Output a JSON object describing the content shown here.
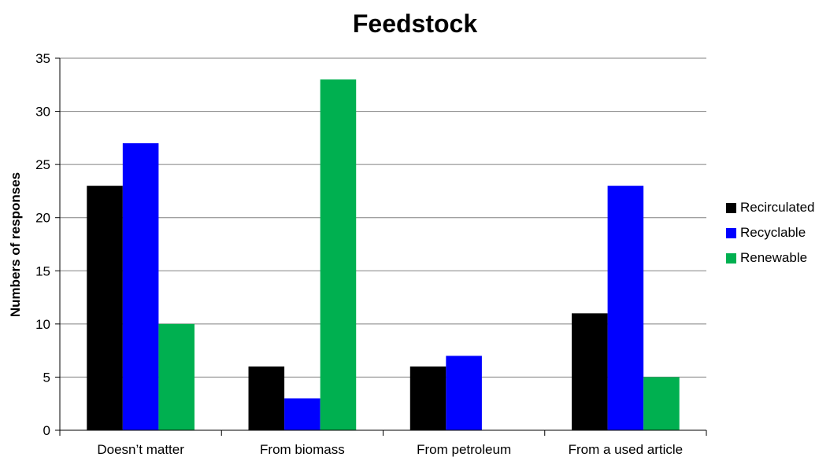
{
  "chart_data": {
    "type": "bar",
    "title": "Feedstock",
    "xlabel": "",
    "ylabel": "Numbers of responses",
    "categories": [
      "Doesn’t matter",
      "From biomass",
      "From petroleum",
      "From a used article"
    ],
    "series": [
      {
        "name": "Recirculated",
        "color": "#000000",
        "values": [
          23,
          6,
          6,
          11
        ]
      },
      {
        "name": "Recyclable",
        "color": "#0000ff",
        "values": [
          27,
          3,
          7,
          23
        ]
      },
      {
        "name": "Renewable",
        "color": "#00b050",
        "values": [
          10,
          33,
          0,
          5
        ]
      }
    ],
    "ylim": [
      0,
      35
    ],
    "yticks": [
      "0",
      "5",
      "10",
      "15",
      "20",
      "25",
      "30",
      "35"
    ],
    "grid": true,
    "legend_position": "right"
  }
}
